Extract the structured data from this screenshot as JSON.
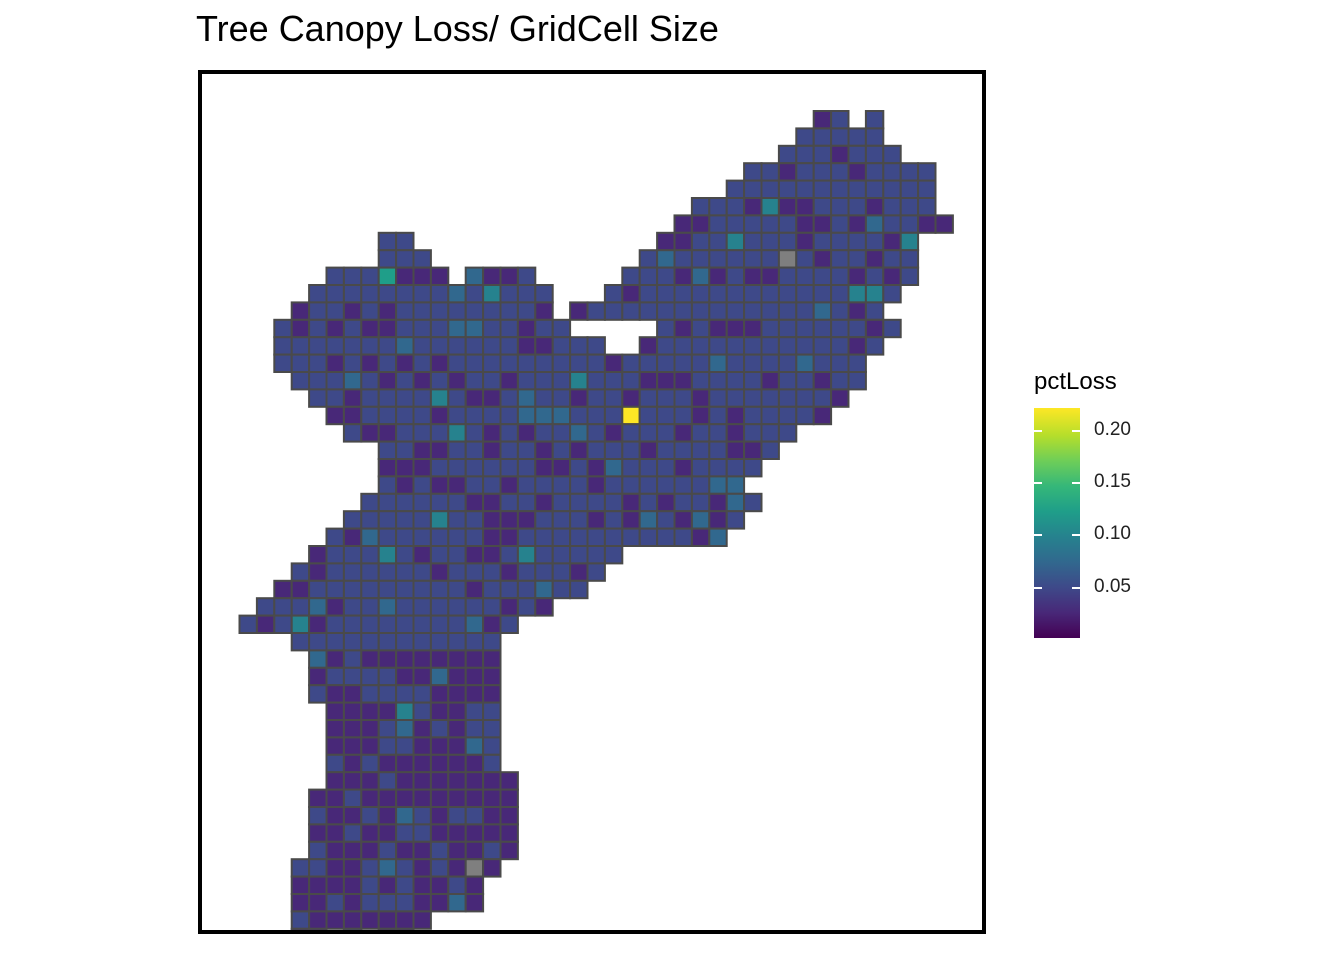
{
  "title": "Tree Canopy Loss/ GridCell Size",
  "legend": {
    "title": "pctLoss",
    "ticks": [
      {
        "label": "0.20",
        "value": 0.2
      },
      {
        "label": "0.15",
        "value": 0.15
      },
      {
        "label": "0.10",
        "value": 0.1
      },
      {
        "label": "0.05",
        "value": 0.05
      }
    ],
    "range": [
      0.003,
      0.22
    ],
    "colors": [
      "#440154",
      "#482878",
      "#3e4989",
      "#31688e",
      "#26828e",
      "#1f9e89",
      "#35b779",
      "#6ece58",
      "#b5de2b",
      "#fde725"
    ],
    "na_color": "#7f7f7f"
  },
  "chart_data": {
    "type": "heatmap",
    "variable": "pctLoss",
    "highlights": [
      {
        "cell": "max",
        "value": 0.22
      },
      {
        "cell": "high",
        "value": 0.12
      },
      {
        "cell": "mid",
        "value": 0.08
      }
    ]
  }
}
